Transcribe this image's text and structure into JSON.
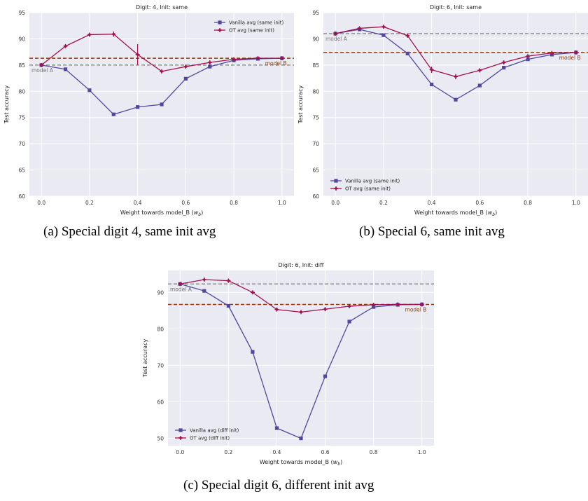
{
  "colors": {
    "plot_background": "#eaeaf2",
    "grid": "#ffffff",
    "vanilla": "#5048a0",
    "ot": "#a0104c",
    "model_a_line": "#8c8c8c",
    "model_b_line": "#8b3a0f",
    "tick_text": "#333333"
  },
  "captions": [
    "(a)  Special digit 4, same init avg",
    "(b)  Special 6, same init avg",
    "(c)  Special digit 6, different init avg"
  ],
  "chart_data": [
    {
      "type": "line",
      "title": "Digit: 4, Init: same",
      "xlabel": "Weight towards model_B (w_b)",
      "ylabel": "Test accuracy",
      "xlim": [
        -0.05,
        1.05
      ],
      "ylim": [
        60,
        95
      ],
      "xticks": [
        0.0,
        0.2,
        0.4,
        0.6,
        0.8,
        1.0
      ],
      "xtick_labels": [
        "0.0",
        "0.2",
        "0.4",
        "0.6",
        "0.8",
        "1.0"
      ],
      "yticks": [
        60,
        65,
        70,
        75,
        80,
        85,
        90,
        95
      ],
      "ytick_labels": [
        "60",
        "65",
        "70",
        "75",
        "80",
        "85",
        "90",
        "95"
      ],
      "grid": true,
      "legend_position": "top-right",
      "x": [
        0.0,
        0.1,
        0.2,
        0.3,
        0.4,
        0.5,
        0.6,
        0.7,
        0.8,
        0.9,
        1.0
      ],
      "series": [
        {
          "name": "Vanilla avg (same init)",
          "marker": "square",
          "values": [
            85.0,
            84.2,
            80.2,
            75.6,
            77.0,
            77.5,
            82.4,
            84.7,
            85.9,
            86.2,
            86.3
          ]
        },
        {
          "name": "OT avg (same init)",
          "marker": "plus",
          "values": [
            85.0,
            88.6,
            90.8,
            90.9,
            87.0,
            83.8,
            84.7,
            85.5,
            86.1,
            86.3,
            86.3
          ],
          "errors": [
            0,
            0.2,
            0.2,
            0.5,
            2.0,
            0.3,
            0.2,
            0.1,
            0.1,
            0.1,
            0.1
          ]
        }
      ],
      "reference_lines": [
        {
          "label": "model A",
          "value": 85.0,
          "label_anchor": "left"
        },
        {
          "label": "model B",
          "value": 86.3,
          "label_anchor": "right"
        }
      ]
    },
    {
      "type": "line",
      "title": "Digit: 6, Init: same",
      "xlabel": "Weight towards model_B (w_b)",
      "ylabel": "Test accuracy",
      "xlim": [
        -0.05,
        1.05
      ],
      "ylim": [
        60,
        95
      ],
      "xticks": [
        0.0,
        0.2,
        0.4,
        0.6,
        0.8,
        1.0
      ],
      "xtick_labels": [
        "0.0",
        "0.2",
        "0.4",
        "0.6",
        "0.8",
        "1.0"
      ],
      "yticks": [
        60,
        65,
        70,
        75,
        80,
        85,
        90,
        95
      ],
      "ytick_labels": [
        "60",
        "65",
        "70",
        "75",
        "80",
        "85",
        "90",
        "95"
      ],
      "grid": true,
      "legend_position": "bottom-left",
      "x": [
        0.0,
        0.1,
        0.2,
        0.3,
        0.4,
        0.5,
        0.6,
        0.7,
        0.8,
        0.9,
        1.0
      ],
      "series": [
        {
          "name": "Vanilla avg (same init)",
          "marker": "square",
          "values": [
            91.0,
            91.8,
            90.7,
            87.2,
            81.3,
            78.4,
            81.1,
            84.5,
            86.1,
            87.0,
            87.4
          ]
        },
        {
          "name": "OT avg (same init)",
          "marker": "plus",
          "values": [
            91.0,
            92.0,
            92.3,
            90.6,
            84.1,
            82.8,
            84.0,
            85.5,
            86.7,
            87.3,
            87.4
          ],
          "errors": [
            0,
            0.2,
            0.2,
            0.3,
            0.6,
            0.5,
            0.3,
            0.2,
            0.1,
            0.1,
            0.1
          ]
        }
      ],
      "reference_lines": [
        {
          "label": "model A",
          "value": 91.0,
          "label_anchor": "left"
        },
        {
          "label": "model B",
          "value": 87.4,
          "label_anchor": "right"
        }
      ]
    },
    {
      "type": "line",
      "title": "Digit: 6, Init: diff",
      "xlabel": "Weight towards model_B (w_b)",
      "ylabel": "Test accuracy",
      "xlim": [
        -0.05,
        1.05
      ],
      "ylim": [
        48,
        96
      ],
      "xticks": [
        0.0,
        0.2,
        0.4,
        0.6,
        0.8,
        1.0
      ],
      "xtick_labels": [
        "0.0",
        "0.2",
        "0.4",
        "0.6",
        "0.8",
        "1.0"
      ],
      "yticks": [
        50,
        60,
        70,
        80,
        90
      ],
      "ytick_labels": [
        "50",
        "60",
        "70",
        "80",
        "90"
      ],
      "grid": true,
      "legend_position": "bottom-left",
      "x": [
        0.0,
        0.1,
        0.2,
        0.3,
        0.4,
        0.5,
        0.6,
        0.7,
        0.8,
        0.9,
        1.0
      ],
      "series": [
        {
          "name": "Vanilla avg (diff init)",
          "marker": "square",
          "values": [
            92.3,
            90.4,
            86.3,
            73.7,
            52.8,
            50.0,
            67.0,
            82.0,
            86.0,
            86.6,
            86.7
          ]
        },
        {
          "name": "OT avg (diff init)",
          "marker": "plus",
          "values": [
            92.3,
            93.5,
            93.2,
            90.0,
            85.3,
            84.6,
            85.4,
            86.2,
            86.6,
            86.7,
            86.7
          ],
          "errors": [
            0,
            0.3,
            0.3,
            0.3,
            0.4,
            0.3,
            0.2,
            0.2,
            0.1,
            0.1,
            0.1
          ]
        }
      ],
      "reference_lines": [
        {
          "label": "model A",
          "value": 92.3,
          "label_anchor": "left"
        },
        {
          "label": "model B",
          "value": 86.7,
          "label_anchor": "right"
        }
      ]
    }
  ]
}
